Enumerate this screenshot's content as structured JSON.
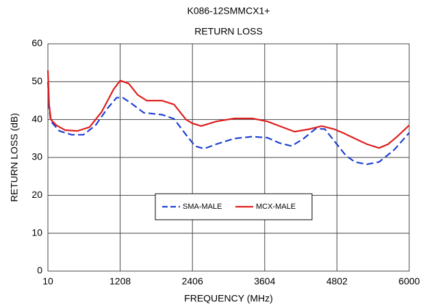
{
  "chart_data": {
    "type": "line",
    "title": "K086-12SMMCX1+",
    "subtitle": "RETURN LOSS",
    "x_label": "FREQUENCY (MHz)",
    "y_label": "RETURN LOSS (dB)",
    "xlim": [
      10,
      6000
    ],
    "xticks": [
      10,
      1208,
      2406,
      3604,
      4802,
      6000
    ],
    "ylim": [
      0,
      60
    ],
    "yticks": [
      0,
      10,
      20,
      30,
      40,
      50,
      60
    ],
    "grid": true,
    "legend": "center",
    "series": [
      {
        "name": "SMA-MALE",
        "color": "#1a3fd1",
        "dash": true,
        "x": [
          10,
          30,
          60,
          200,
          400,
          600,
          800,
          1000,
          1150,
          1250,
          1400,
          1600,
          1900,
          2100,
          2300,
          2450,
          2600,
          2800,
          3100,
          3400,
          3650,
          3850,
          4050,
          4250,
          4450,
          4600,
          4800,
          4950,
          5100,
          5300,
          5500,
          5750,
          6000
        ],
        "values": [
          50,
          43,
          39.5,
          37,
          36,
          36,
          38.5,
          43,
          45.8,
          45.8,
          44.2,
          41.8,
          41.3,
          40.2,
          36,
          33,
          32.3,
          33.5,
          35,
          35.5,
          35.2,
          33.8,
          33,
          35,
          37.6,
          37.5,
          33.5,
          30.5,
          28.8,
          28.2,
          28.8,
          32,
          36.5
        ]
      },
      {
        "name": "MCX-MALE",
        "color": "#e01b1b",
        "dash": false,
        "x": [
          10,
          30,
          60,
          150,
          300,
          500,
          700,
          900,
          1100,
          1208,
          1350,
          1500,
          1650,
          1900,
          2100,
          2300,
          2406,
          2550,
          2800,
          3100,
          3400,
          3650,
          3900,
          4100,
          4350,
          4550,
          4750,
          4900,
          5100,
          5300,
          5500,
          5650,
          5800,
          6000
        ],
        "values": [
          53,
          44,
          40,
          38.5,
          37.2,
          37,
          38,
          42,
          48,
          50.3,
          49.5,
          46.5,
          45,
          45,
          44,
          40,
          39,
          38.3,
          39.5,
          40.3,
          40.3,
          39.5,
          38,
          36.8,
          37.5,
          38.3,
          37.5,
          36.5,
          35,
          33.5,
          32.5,
          33.5,
          35.5,
          38.5
        ]
      }
    ]
  }
}
